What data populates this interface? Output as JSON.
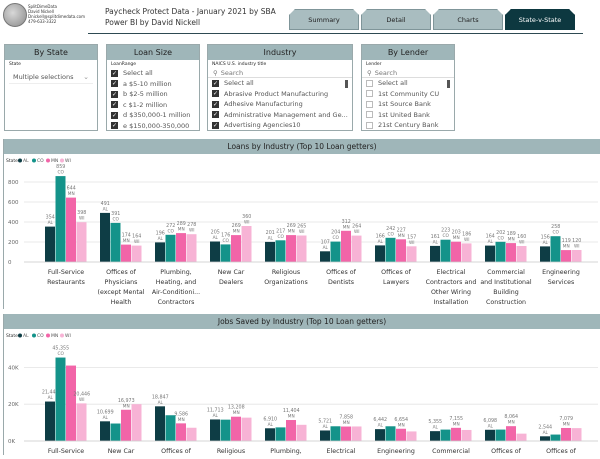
{
  "header": {
    "logo_lines": [
      "SplitDimeData",
      "David Nickell",
      "Dnickell@splitdimedata.com",
      "479-633-3322"
    ],
    "title_line1": "Paycheck Protect Data - January 2021 by SBA",
    "title_line2": "Power BI by David Nickell"
  },
  "tabs": [
    {
      "label": "Summary",
      "active": false
    },
    {
      "label": "Detail",
      "active": false
    },
    {
      "label": "Charts",
      "active": false
    },
    {
      "label": "State-v-State",
      "active": true
    }
  ],
  "slicers": {
    "state": {
      "title": "By State",
      "field": "State",
      "value": "Multiple selections"
    },
    "loan_size": {
      "title": "Loan Size",
      "field": "LoanRange",
      "items": [
        {
          "label": "Select all",
          "checked": true
        },
        {
          "label": "a $5-10 million",
          "checked": true
        },
        {
          "label": "b $2-5 million",
          "checked": true
        },
        {
          "label": "c $1-2 million",
          "checked": true
        },
        {
          "label": "d $350,000-1 million",
          "checked": true
        },
        {
          "label": "e $150,000-350,000",
          "checked": true
        }
      ]
    },
    "industry": {
      "title": "Industry",
      "field": "NAICS U.S. industry title",
      "search_placeholder": "Search",
      "items": [
        {
          "label": "Select all",
          "checked": true
        },
        {
          "label": "Abrasive Product Manufacturing",
          "checked": true
        },
        {
          "label": "Adhesive Manufacturing",
          "checked": true
        },
        {
          "label": "Administrative Management and Ge...",
          "checked": true
        },
        {
          "label": "Advertising Agencies10",
          "checked": true
        }
      ]
    },
    "lender": {
      "title": "By Lender",
      "field": "Lender",
      "search_placeholder": "Search",
      "items": [
        {
          "label": "Select all",
          "checked": false
        },
        {
          "label": "1st Community CU",
          "checked": false
        },
        {
          "label": "1st Source Bank",
          "checked": false
        },
        {
          "label": "1st United Bank",
          "checked": false
        },
        {
          "label": "21st Century Bank",
          "checked": false
        }
      ]
    }
  },
  "colors": {
    "AL": "#0e3d45",
    "CO": "#14938a",
    "MN": "#f265a8",
    "WI": "#f7b3d5"
  },
  "chart_data": [
    {
      "type": "bar",
      "title": "Loans by Industry (Top 10 Loan getters)",
      "legend_title": "State",
      "legend_position": "top-left",
      "ylim": [
        0,
        900
      ],
      "yticks": [
        "0",
        "200",
        "400",
        "600",
        "800"
      ],
      "ytick_values": [
        0,
        200,
        400,
        600,
        800
      ],
      "categories": [
        [
          "Full-Service",
          "Restaurants"
        ],
        [
          "Offices of",
          "Physicians",
          "(except Mental",
          "Health",
          "Specialists)"
        ],
        [
          "Plumbing,",
          "Heating, and",
          "Air-Conditioni...",
          "Contractors"
        ],
        [
          "New Car",
          "Dealers"
        ],
        [
          "Religious",
          "Organizations"
        ],
        [
          "Offices of",
          "Dentists"
        ],
        [
          "Offices of",
          "Lawyers"
        ],
        [
          "Electrical",
          "Contractors and",
          "Other Wiring",
          "Installation",
          "Contractors"
        ],
        [
          "Commercial",
          "and Institutional",
          "Building",
          "Construction"
        ],
        [
          "Engineering",
          "Services"
        ]
      ],
      "series": [
        {
          "name": "AL",
          "values": [
            354,
            491,
            196,
            205,
            201,
            107,
            166,
            161,
            164,
            156
          ]
        },
        {
          "name": "CO",
          "values": [
            859,
            391,
            272,
            176,
            217,
            204,
            242,
            223,
            202,
            258
          ]
        },
        {
          "name": "MN",
          "values": [
            644,
            174,
            289,
            269,
            269,
            312,
            227,
            203,
            189,
            119
          ]
        },
        {
          "name": "WI",
          "values": [
            398,
            164,
            278,
            360,
            265,
            264,
            157,
            186,
            160,
            120
          ]
        }
      ]
    },
    {
      "type": "bar",
      "title": "Jobs Saved by Industry (Top 10 Loan getters)",
      "legend_title": "State",
      "legend_position": "top-left",
      "ylim": [
        0,
        50000
      ],
      "yticks": [
        "0K",
        "20K",
        "40K"
      ],
      "ytick_values": [
        0,
        20000,
        40000
      ],
      "categories": [
        [
          "Full-Service"
        ],
        [
          "New Car"
        ],
        [
          "Offices of"
        ],
        [
          "Religious"
        ],
        [
          "Plumbing,"
        ],
        [
          "Electrical"
        ],
        [
          "Engineering"
        ],
        [
          "Commercial"
        ],
        [
          "Offices of"
        ],
        [
          "Offices of"
        ]
      ],
      "series": [
        {
          "name": "AL",
          "values": [
            21448,
            10699,
            18847,
            11713,
            6910,
            5721,
            6442,
            5355,
            6098,
            2544
          ]
        },
        {
          "name": "CO",
          "values": [
            45355,
            9500,
            14000,
            11600,
            7400,
            8000,
            8000,
            6200,
            6200,
            3500
          ]
        },
        {
          "name": "MN",
          "values": [
            41000,
            16973,
            9586,
            13208,
            11404,
            7858,
            6654,
            7155,
            8064,
            7079
          ]
        },
        {
          "name": "WI",
          "values": [
            20446,
            20000,
            7200,
            12700,
            8800,
            7900,
            5200,
            6000,
            4000,
            7000
          ]
        }
      ],
      "labeled": {
        "AL": [
          true,
          true,
          true,
          true,
          true,
          true,
          true,
          true,
          true,
          true
        ],
        "CO": [
          true,
          false,
          false,
          false,
          false,
          false,
          false,
          false,
          false,
          false
        ],
        "MN": [
          false,
          true,
          true,
          true,
          true,
          true,
          true,
          true,
          true,
          true
        ],
        "WI": [
          true,
          false,
          false,
          false,
          false,
          false,
          false,
          false,
          false,
          false
        ]
      }
    }
  ]
}
